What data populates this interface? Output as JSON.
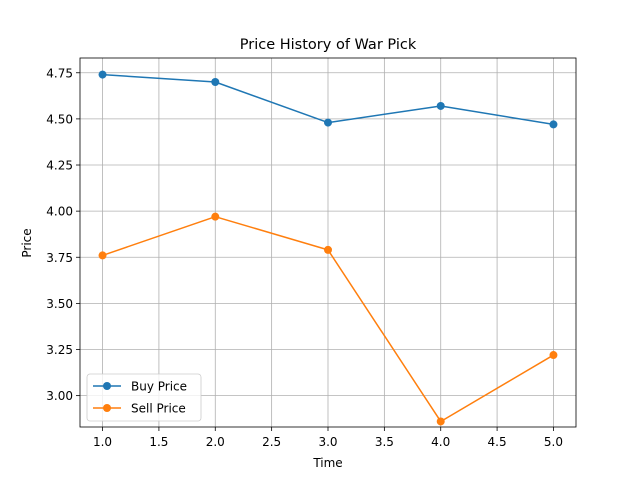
{
  "chart_data": {
    "type": "line",
    "title": "Price History of War Pick",
    "xlabel": "Time",
    "ylabel": "Price",
    "x": [
      1,
      2,
      3,
      4,
      5
    ],
    "xlim": [
      0.8,
      5.2
    ],
    "ylim": [
      2.83,
      4.83
    ],
    "xticks": [
      1.0,
      1.5,
      2.0,
      2.5,
      3.0,
      3.5,
      4.0,
      4.5,
      5.0
    ],
    "xtick_labels": [
      "1.0",
      "1.5",
      "2.0",
      "2.5",
      "3.0",
      "3.5",
      "4.0",
      "4.5",
      "5.0"
    ],
    "yticks": [
      3.0,
      3.25,
      3.5,
      3.75,
      4.0,
      4.25,
      4.5,
      4.75
    ],
    "ytick_labels": [
      "3.00",
      "3.25",
      "3.50",
      "3.75",
      "4.00",
      "4.25",
      "4.50",
      "4.75"
    ],
    "grid": true,
    "legend_position": "lower-left",
    "series": [
      {
        "name": "Buy Price",
        "color": "#1f77b4",
        "values": [
          4.74,
          4.7,
          4.48,
          4.57,
          4.47
        ]
      },
      {
        "name": "Sell Price",
        "color": "#ff7f0e",
        "values": [
          3.76,
          3.97,
          3.79,
          2.86,
          3.22
        ]
      }
    ]
  }
}
